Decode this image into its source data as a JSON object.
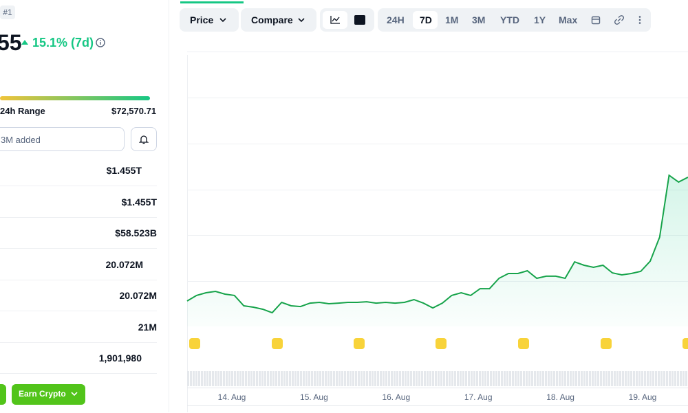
{
  "header": {
    "rank": "#1",
    "price_fragment": "55",
    "change": "15.1% (7d)"
  },
  "range": {
    "label": "24h Range",
    "high": "$72,570.71"
  },
  "watchlist": {
    "added": "3M added"
  },
  "stats": [
    "$1.455T",
    "$1.455T",
    "$58.523B",
    "20.072M",
    "20.072M",
    "21M",
    "1,901,980"
  ],
  "actions": {
    "earn": "Earn Crypto"
  },
  "toolbar": {
    "price": "Price",
    "compare": "Compare",
    "ranges": [
      "24H",
      "7D",
      "1M",
      "3M",
      "YTD",
      "1Y",
      "Max"
    ]
  },
  "chart_data": {
    "type": "line",
    "color": "#16a34a",
    "ylim": [
      60240,
      82520
    ],
    "x_tick_labels": [
      "14. Aug",
      "15. Aug",
      "16. Aug",
      "17. Aug",
      "18. Aug",
      "19. Aug"
    ],
    "values": [
      62300,
      62750,
      62970,
      63080,
      62860,
      62750,
      61910,
      61800,
      61630,
      61350,
      62190,
      61910,
      61850,
      62130,
      62190,
      62080,
      62130,
      62190,
      62190,
      62240,
      62130,
      62190,
      62130,
      62190,
      62410,
      62130,
      61740,
      62130,
      62750,
      62970,
      62750,
      63300,
      63300,
      64140,
      64530,
      64530,
      64750,
      64140,
      64310,
      64310,
      64140,
      65470,
      65200,
      65030,
      65200,
      64580,
      64420,
      64530,
      64700,
      65530,
      67480,
      72490,
      71940,
      72330
    ]
  }
}
